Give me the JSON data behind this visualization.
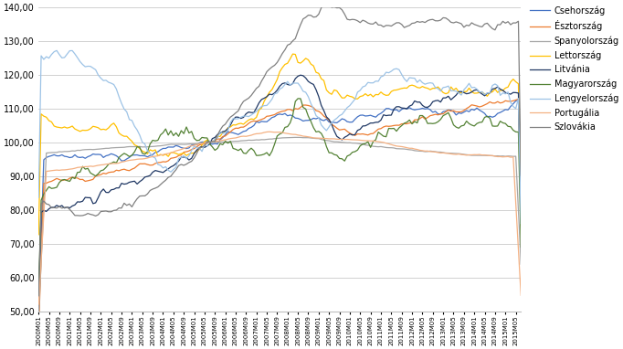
{
  "title": "",
  "ylabel": "",
  "xlabel": "",
  "ylim": [
    50,
    140
  ],
  "yticks": [
    50,
    60,
    70,
    80,
    90,
    100,
    110,
    120,
    130,
    140
  ],
  "background_color": "#ffffff",
  "grid_color": "#bfbfbf",
  "legend_labels": [
    "Csehország",
    "Észtország",
    "Spanyolország",
    "Lettország",
    "Litvánia",
    "Magyarország",
    "Lengyelország",
    "Portugália",
    "Szlovákia"
  ],
  "line_colors": [
    "#4472c4",
    "#ed7d31",
    "#a6a6a6",
    "#ffc000",
    "#203864",
    "#548235",
    "#9dc3e6",
    "#f4b183",
    "#808080"
  ]
}
